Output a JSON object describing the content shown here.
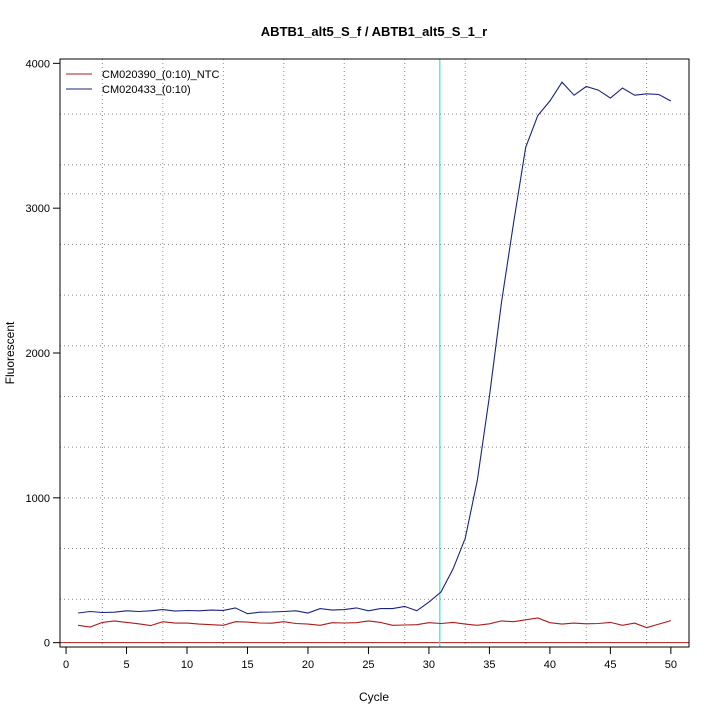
{
  "chart_data": {
    "type": "line",
    "title": "ABTB1_alt5_S_f / ABTB1_alt5_S_1_r",
    "xlabel": "Cycle",
    "ylabel": "Fluorescent",
    "xlim": [
      -0.5,
      51.5
    ],
    "ylim": [
      -30,
      4030
    ],
    "x_ticks": [
      0,
      5,
      10,
      15,
      20,
      25,
      30,
      35,
      40,
      45,
      50
    ],
    "y_ticks": [
      0,
      1000,
      2000,
      3000,
      4000
    ],
    "x_grid": [
      3,
      8,
      13,
      18,
      23,
      28,
      33,
      38,
      43,
      48
    ],
    "y_grid": [
      300,
      650,
      1000,
      1350,
      1700,
      2050,
      2400,
      2750,
      3100,
      3300,
      3650
    ],
    "grid": true,
    "legend_position": "top-left",
    "threshold_cycle": 30.9,
    "threshold_color": "#33e0e0",
    "baseline_value": 0,
    "baseline_color": "#aa1c1c",
    "series": [
      {
        "name": "CM020390_(0:10)_NTC",
        "color": "#aa1c1c",
        "x": [
          1,
          2,
          3,
          4,
          5,
          6,
          7,
          8,
          9,
          10,
          11,
          12,
          13,
          14,
          15,
          16,
          17,
          18,
          19,
          20,
          21,
          22,
          23,
          24,
          25,
          26,
          27,
          28,
          29,
          30,
          31,
          32,
          33,
          34,
          35,
          36,
          37,
          38,
          39,
          40,
          41,
          42,
          43,
          44,
          45,
          46,
          47,
          48,
          49,
          50
        ],
        "values": [
          120,
          108,
          140,
          150,
          140,
          130,
          118,
          145,
          135,
          135,
          128,
          124,
          120,
          145,
          142,
          136,
          134,
          145,
          132,
          128,
          120,
          138,
          136,
          138,
          150,
          140,
          120,
          122,
          124,
          138,
          132,
          140,
          128,
          120,
          130,
          150,
          145,
          158,
          170,
          138,
          128,
          135,
          130,
          132,
          140,
          120,
          135,
          103,
          128,
          152
        ]
      },
      {
        "name": "CM020433_(0:10)",
        "color": "#1a237e",
        "x": [
          1,
          2,
          3,
          4,
          5,
          6,
          7,
          8,
          9,
          10,
          11,
          12,
          13,
          14,
          15,
          16,
          17,
          18,
          19,
          20,
          21,
          22,
          23,
          24,
          25,
          26,
          27,
          28,
          29,
          30,
          31,
          32,
          33,
          34,
          35,
          36,
          37,
          38,
          39,
          40,
          41,
          42,
          43,
          44,
          45,
          46,
          47,
          48,
          49,
          50
        ],
        "values": [
          205,
          215,
          208,
          210,
          220,
          215,
          220,
          228,
          218,
          222,
          220,
          225,
          223,
          240,
          200,
          210,
          212,
          215,
          220,
          205,
          235,
          225,
          228,
          240,
          220,
          235,
          235,
          250,
          220,
          280,
          350,
          510,
          720,
          1120,
          1700,
          2350,
          2900,
          3420,
          3640,
          3740,
          3870,
          3780,
          3840,
          3815,
          3760,
          3830,
          3780,
          3790,
          3785,
          3740
        ]
      }
    ]
  }
}
